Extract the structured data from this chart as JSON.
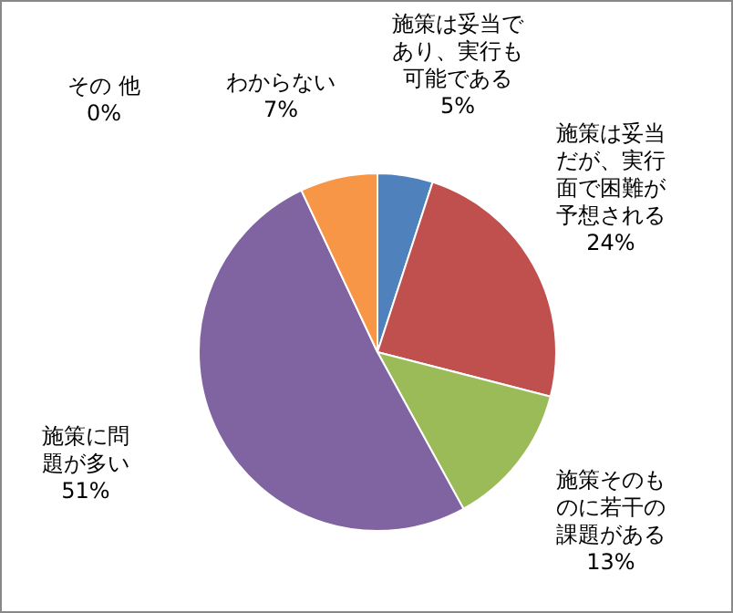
{
  "chart_data": {
    "type": "pie",
    "categories": [
      "施策は妥当であり、実行も可能である",
      "施策は妥当だが、実行面で困難が予想される",
      "施策そのものに若干の課題がある",
      "施策に問題が多い",
      "その 他",
      "わからない"
    ],
    "values": [
      5,
      24,
      13,
      51,
      0,
      7
    ],
    "value_labels": [
      "5%",
      "24%",
      "13%",
      "51%",
      "0%",
      "7%"
    ],
    "colors": [
      "#4f81bd",
      "#c0504d",
      "#9bbb59",
      "#8064a2",
      null,
      "#f79646"
    ],
    "legend": false
  }
}
